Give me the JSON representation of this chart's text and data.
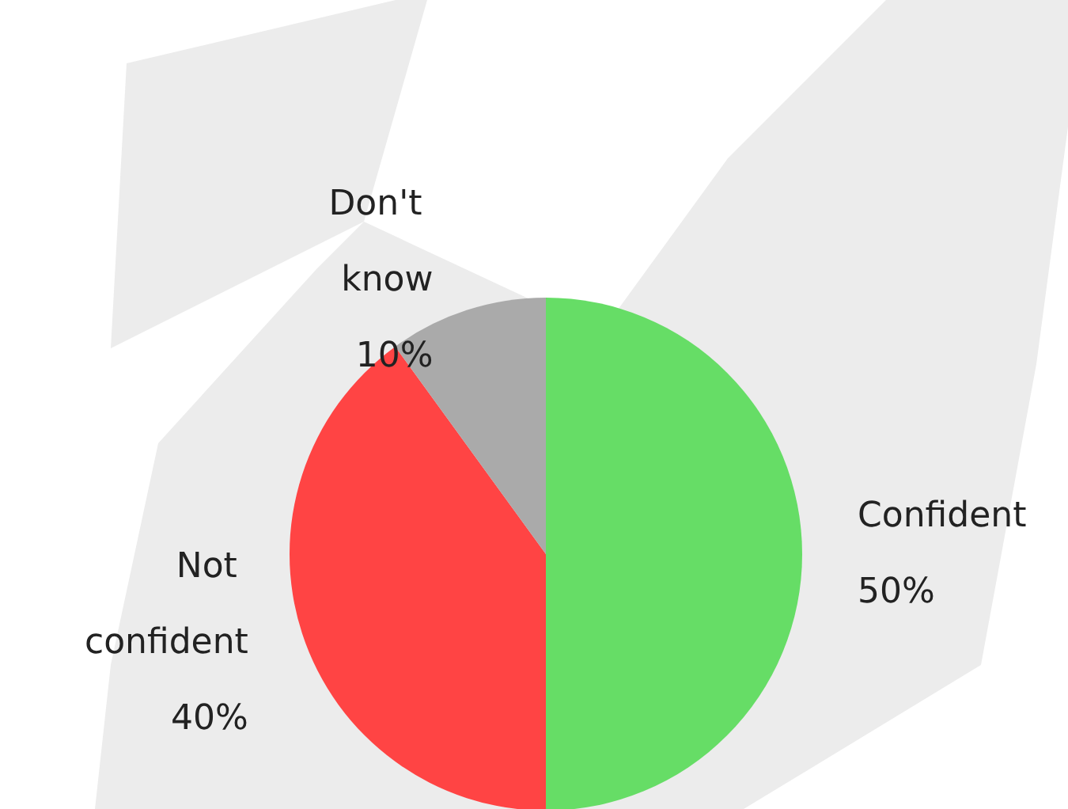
{
  "chart_data": {
    "type": "pie",
    "categories": [
      "Confident",
      "Not confident",
      "Don't know"
    ],
    "values": [
      50,
      40,
      10
    ],
    "colors": [
      "#66dd66",
      "#ff4444",
      "#aaaaaa"
    ],
    "value_labels": [
      "50%",
      "40%",
      "10%"
    ]
  }
}
